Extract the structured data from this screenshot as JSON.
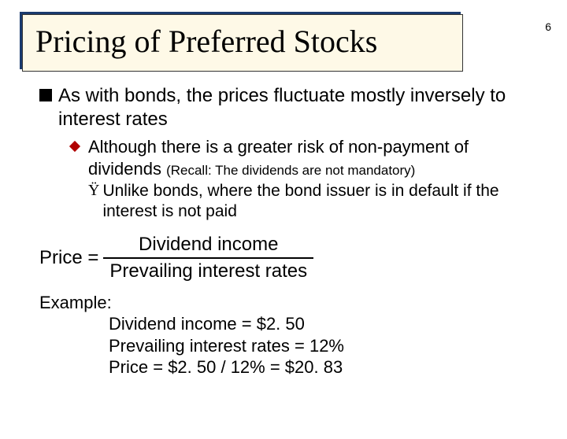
{
  "page_number": "6",
  "title": "Pricing of Preferred Stocks",
  "l1_text": "As with bonds, the prices fluctuate mostly inversely to interest rates",
  "l2_main": "Although there is a greater risk of non-payment of dividends ",
  "l2_recall": "(Recall: The dividends are not mandatory)",
  "l3_bullet": "Ÿ",
  "l3_text": "Unlike bonds, where the bond issuer is in default if the interest is not paid",
  "formula": {
    "label": "Price = ",
    "numerator": "Dividend income",
    "denominator": "Prevailing interest rates"
  },
  "example": {
    "heading": "Example:",
    "line1": "Dividend income = $2. 50",
    "line2": "Prevailing interest rates = 12%",
    "line3": "Price = $2. 50 / 12% = $20. 83"
  },
  "colors": {
    "title_bg": "#fef9e7",
    "title_shadow": "#1a3a6e",
    "diamond": "#b00000"
  }
}
